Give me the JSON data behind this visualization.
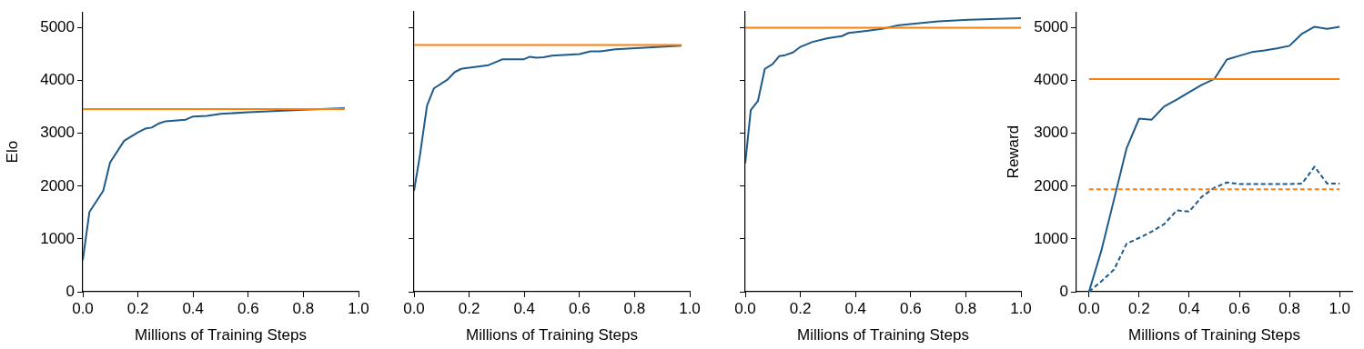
{
  "chart_data": [
    {
      "type": "line",
      "ylabel": "Elo",
      "xlabel": "Millions of Training Steps",
      "xlim": [
        0,
        1
      ],
      "xticks": [
        {
          "value": 0,
          "label": "0.0"
        },
        {
          "value": 0.2,
          "label": "0.2"
        },
        {
          "value": 0.4,
          "label": "0.4"
        },
        {
          "value": 0.6,
          "label": "0.6"
        },
        {
          "value": 0.8,
          "label": "0.8"
        },
        {
          "value": 1,
          "label": "1.0"
        }
      ],
      "ylim": [
        0,
        5300
      ],
      "yticks": [
        0,
        1000,
        2000,
        3000,
        4000,
        5000
      ],
      "grid": false,
      "legend": false,
      "marker": "none",
      "series": [
        {
          "color": "#1f5b8a",
          "line_style": "solid",
          "x": [
            0,
            0.024,
            0.074,
            0.099,
            0.15,
            0.2,
            0.226,
            0.25,
            0.277,
            0.3,
            0.373,
            0.4,
            0.45,
            0.5,
            0.6,
            0.8,
            0.95
          ],
          "values": [
            600,
            1510,
            1910,
            2450,
            2860,
            3020,
            3090,
            3110,
            3190,
            3230,
            3260,
            3320,
            3330,
            3370,
            3400,
            3450,
            3480
          ]
        }
      ],
      "ref_lines": [
        {
          "axis": "y",
          "value": 3460,
          "color": "#ff7f0e",
          "line_style": "solid"
        }
      ]
    },
    {
      "type": "line",
      "xlabel": "Millions of Training Steps",
      "xlim": [
        0,
        1
      ],
      "xticks": [
        {
          "value": 0,
          "label": "0.0"
        },
        {
          "value": 0.2,
          "label": "0.2"
        },
        {
          "value": 0.4,
          "label": "0.4"
        },
        {
          "value": 0.6,
          "label": "0.6"
        },
        {
          "value": 0.8,
          "label": "0.8"
        },
        {
          "value": 1,
          "label": "1.0"
        }
      ],
      "ylim": [
        0,
        5300
      ],
      "yticks": [
        0,
        1000,
        2000,
        3000,
        4000,
        5000
      ],
      "tick_labels": "x",
      "grid": false,
      "legend": false,
      "marker": "none",
      "series": [
        {
          "color": "#1f5b8a",
          "line_style": "solid",
          "x": [
            0,
            0.022,
            0.047,
            0.072,
            0.12,
            0.148,
            0.171,
            0.27,
            0.32,
            0.397,
            0.42,
            0.443,
            0.47,
            0.5,
            0.6,
            0.64,
            0.676,
            0.73,
            0.97
          ],
          "values": [
            1910,
            2600,
            3520,
            3850,
            4010,
            4160,
            4220,
            4290,
            4400,
            4400,
            4450,
            4430,
            4440,
            4470,
            4500,
            4550,
            4550,
            4590,
            4660
          ]
        }
      ],
      "ref_lines": [
        {
          "axis": "y",
          "value": 4670,
          "color": "#ff7f0e",
          "line_style": "solid"
        }
      ]
    },
    {
      "type": "line",
      "xlabel": "Millions of Training Steps",
      "xlim": [
        0,
        1
      ],
      "xticks": [
        {
          "value": 0,
          "label": "0.0"
        },
        {
          "value": 0.2,
          "label": "0.2"
        },
        {
          "value": 0.4,
          "label": "0.4"
        },
        {
          "value": 0.6,
          "label": "0.6"
        },
        {
          "value": 0.8,
          "label": "0.8"
        },
        {
          "value": 1,
          "label": "1.0"
        }
      ],
      "ylim": [
        0,
        5300
      ],
      "yticks": [
        0,
        1000,
        2000,
        3000,
        4000,
        5000
      ],
      "tick_labels": "x",
      "grid": false,
      "legend": false,
      "marker": "none",
      "series": [
        {
          "color": "#1f5b8a",
          "line_style": "solid",
          "x": [
            0,
            0.02,
            0.046,
            0.071,
            0.099,
            0.123,
            0.145,
            0.173,
            0.198,
            0.244,
            0.3,
            0.35,
            0.375,
            0.44,
            0.5,
            0.55,
            0.7,
            0.81,
            1
          ],
          "values": [
            2430,
            3440,
            3610,
            4220,
            4310,
            4460,
            4480,
            4530,
            4630,
            4730,
            4800,
            4840,
            4900,
            4940,
            4980,
            5040,
            5120,
            5150,
            5180
          ]
        }
      ],
      "ref_lines": [
        {
          "axis": "y",
          "value": 5000,
          "color": "#ff7f0e",
          "line_style": "solid"
        }
      ]
    },
    {
      "type": "line",
      "ylabel": "Reward",
      "xlabel": "Millions of Training Steps",
      "xlim": [
        -0.05,
        1.05
      ],
      "xticks": [
        {
          "value": 0,
          "label": "0.0"
        },
        {
          "value": 0.2,
          "label": "0.2"
        },
        {
          "value": 0.4,
          "label": "0.4"
        },
        {
          "value": 0.6,
          "label": "0.6"
        },
        {
          "value": 0.8,
          "label": "0.8"
        },
        {
          "value": 1,
          "label": "1.0"
        }
      ],
      "ylim": [
        0,
        5300
      ],
      "yticks": [
        0,
        1000,
        2000,
        3000,
        4000,
        5000
      ],
      "grid": false,
      "legend": false,
      "marker": "none",
      "x": [
        0,
        0.05,
        0.1,
        0.15,
        0.2,
        0.25,
        0.3,
        0.35,
        0.4,
        0.45,
        0.5,
        0.55,
        0.6,
        0.65,
        0.7,
        0.75,
        0.8,
        0.85,
        0.9,
        0.95,
        1
      ],
      "series": [
        {
          "color": "#1f5b8a",
          "line_style": "solid",
          "values": [
            0,
            790,
            1750,
            2720,
            3280,
            3260,
            3510,
            3640,
            3780,
            3920,
            4030,
            4400,
            4470,
            4540,
            4570,
            4610,
            4660,
            4890,
            5020,
            4980,
            5020
          ]
        },
        {
          "color": "#1f5b8a",
          "line_style": "dashed",
          "values": [
            0,
            200,
            420,
            910,
            1020,
            1140,
            1280,
            1540,
            1520,
            1800,
            1970,
            2070,
            2040,
            2040,
            2040,
            2040,
            2040,
            2050,
            2370,
            2050,
            2050
          ]
        }
      ],
      "ref_lines": [
        {
          "axis": "y",
          "value": 4030,
          "color": "#ff7f0e",
          "line_style": "solid"
        },
        {
          "axis": "y",
          "value": 1940,
          "color": "#ff7f0e",
          "line_style": "dashed"
        }
      ]
    }
  ]
}
